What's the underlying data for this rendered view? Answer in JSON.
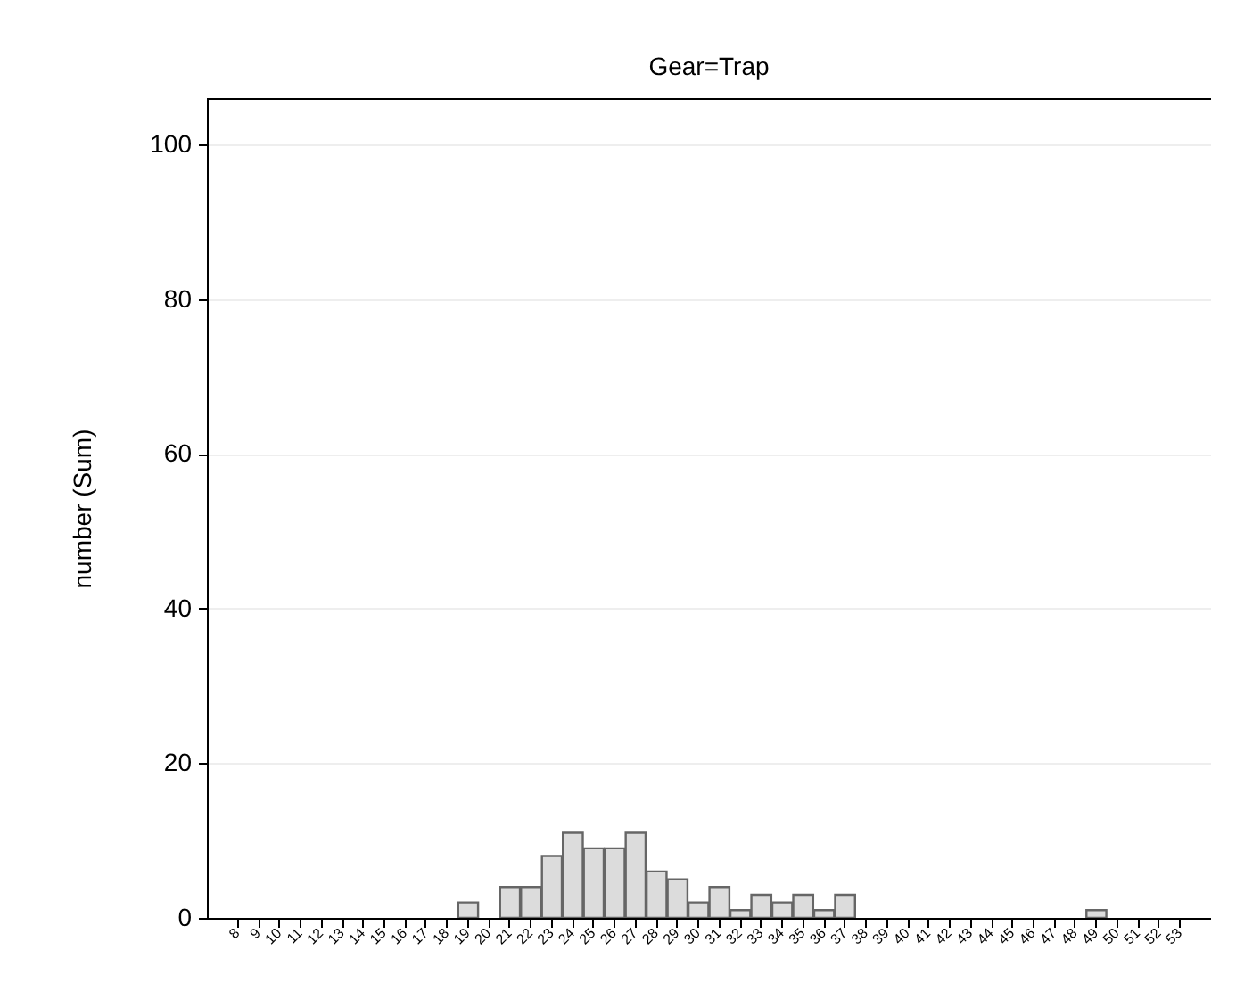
{
  "chart_data": {
    "type": "bar",
    "title": "Gear=Trap",
    "ylabel": "number (Sum)",
    "categories": [
      "8",
      "9",
      "10",
      "11",
      "12",
      "13",
      "14",
      "15",
      "16",
      "17",
      "18",
      "19",
      "20",
      "21",
      "22",
      "23",
      "24",
      "25",
      "26",
      "27",
      "28",
      "29",
      "30",
      "31",
      "32",
      "33",
      "34",
      "35",
      "36",
      "37",
      "38",
      "39",
      "40",
      "41",
      "42",
      "43",
      "44",
      "45",
      "46",
      "47",
      "48",
      "49",
      "50",
      "51",
      "52",
      "53"
    ],
    "values": [
      0,
      0,
      0,
      0,
      0,
      0,
      0,
      0,
      0,
      0,
      0,
      2,
      0,
      4,
      4,
      8,
      11,
      9,
      9,
      11,
      6,
      5,
      2,
      4,
      1,
      3,
      2,
      3,
      1,
      3,
      0,
      0,
      0,
      0,
      0,
      0,
      0,
      0,
      0,
      0,
      0,
      1,
      0,
      0,
      0,
      0
    ],
    "color": "#dcdcdc",
    "ylim": [
      0,
      106
    ],
    "yticks": [
      0,
      20,
      40,
      60,
      80,
      100
    ],
    "grid": "y"
  }
}
